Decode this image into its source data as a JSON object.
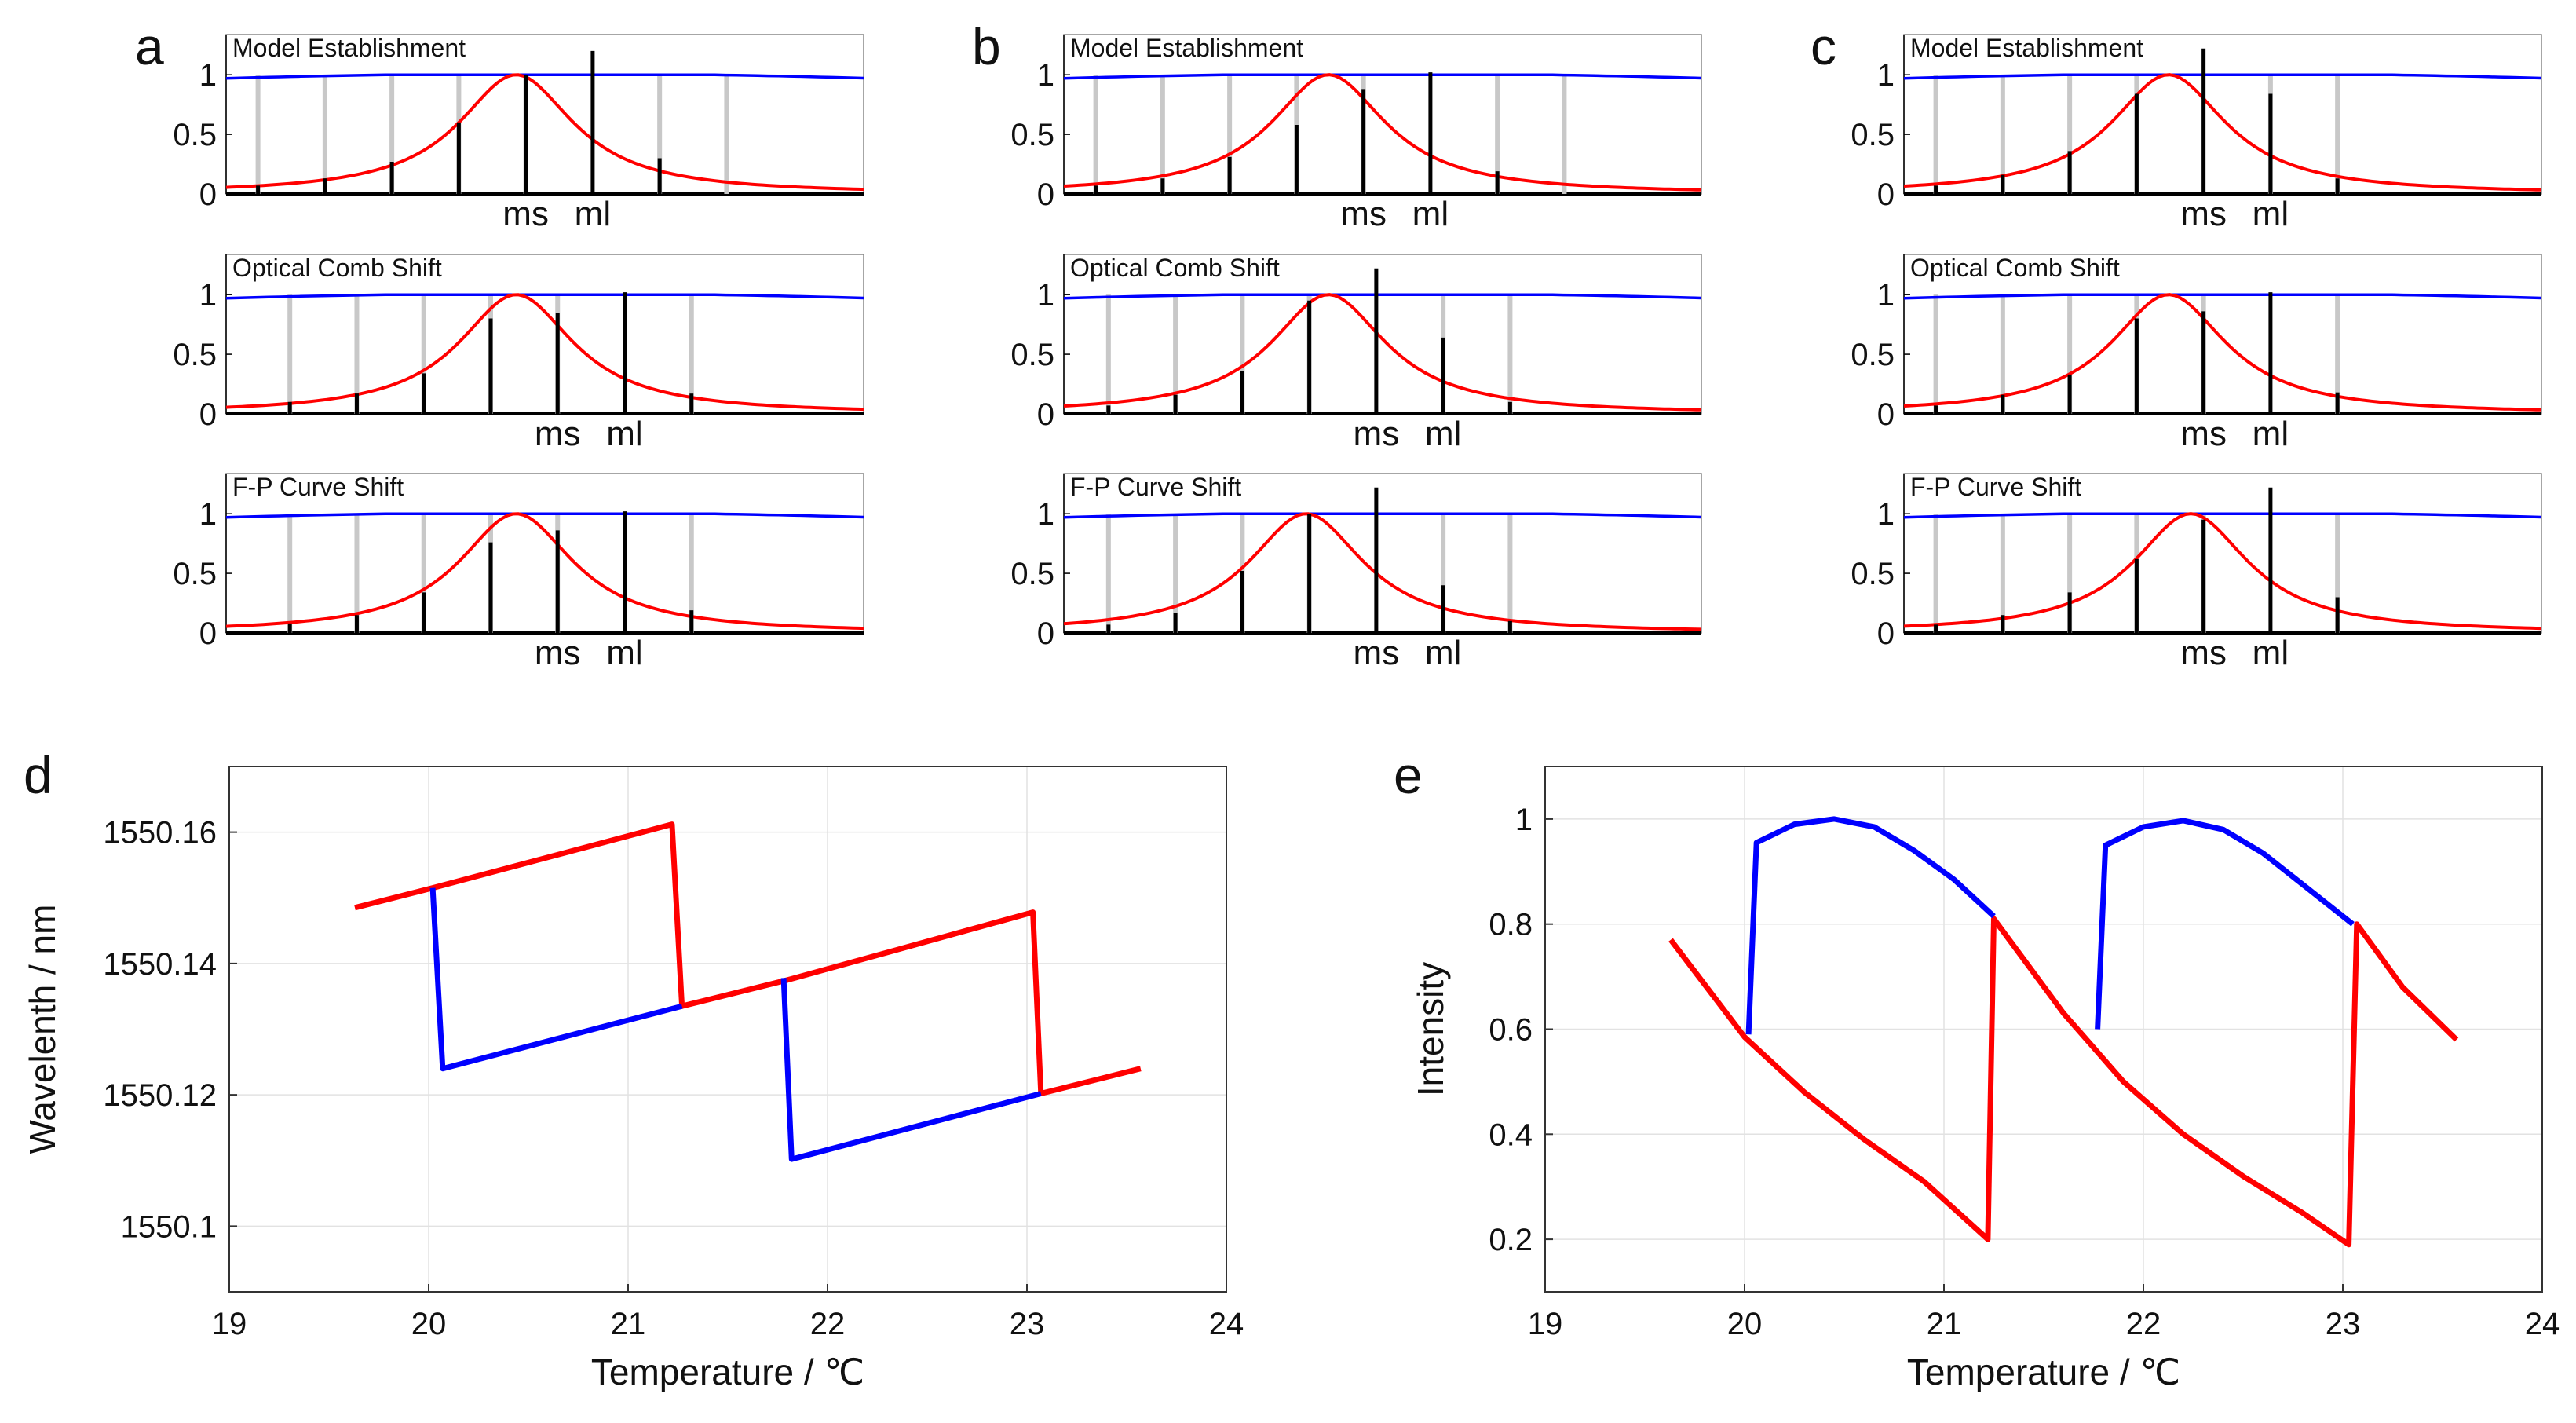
{
  "figure": {
    "colors": {
      "red": "#ff0000",
      "blue": "#0000ff",
      "black": "#000000",
      "gray": "#c8c8c8",
      "grid": "#e2e2e2"
    },
    "chart_data": [
      {
        "id": "a",
        "type": "line",
        "panel_letter": "a",
        "rows": [
          {
            "title": "Model Establishment",
            "ytick_labels": [
              "0",
              "0.5",
              "1"
            ],
            "mark_labels": [
              "ms",
              "ml"
            ],
            "comb_teeth": [
              {
                "x": 0.05,
                "black": 0.07,
                "gray": 1.0
              },
              {
                "x": 0.155,
                "black": 0.13,
                "gray": 1.0
              },
              {
                "x": 0.26,
                "black": 0.27,
                "gray": 1.0
              },
              {
                "x": 0.365,
                "black": 0.6,
                "gray": 1.0
              },
              {
                "x": 0.47,
                "black": 1.0,
                "gray": 1.0
              },
              {
                "x": 0.575,
                "black": 1.2,
                "gray": 0
              },
              {
                "x": 0.68,
                "black": 0.3,
                "gray": 1.0
              },
              {
                "x": 0.785,
                "black": 0,
                "gray": 1.0
              }
            ],
            "peak_x": 0.455,
            "ms_x": 0.47,
            "ml_x": 0.575
          },
          {
            "title": "Optical Comb Shift",
            "ytick_labels": [
              "0",
              "0.5",
              "1"
            ],
            "mark_labels": [
              "ms",
              "ml"
            ],
            "comb_teeth": [
              {
                "x": 0.1,
                "black": 0.1,
                "gray": 1.0
              },
              {
                "x": 0.205,
                "black": 0.17,
                "gray": 1.0
              },
              {
                "x": 0.31,
                "black": 0.34,
                "gray": 1.0
              },
              {
                "x": 0.415,
                "black": 0.8,
                "gray": 1.0
              },
              {
                "x": 0.52,
                "black": 0.85,
                "gray": 1.0
              },
              {
                "x": 0.625,
                "black": 1.02,
                "gray": 0
              },
              {
                "x": 0.73,
                "black": 0.17,
                "gray": 1.0
              }
            ],
            "peak_x": 0.455,
            "ms_x": 0.52,
            "ml_x": 0.625
          },
          {
            "title": "F-P Curve Shift",
            "ytick_labels": [
              "0",
              "0.5",
              "1"
            ],
            "mark_labels": [
              "ms",
              "ml"
            ],
            "comb_teeth": [
              {
                "x": 0.1,
                "black": 0.08,
                "gray": 1.0
              },
              {
                "x": 0.205,
                "black": 0.15,
                "gray": 1.0
              },
              {
                "x": 0.31,
                "black": 0.34,
                "gray": 1.0
              },
              {
                "x": 0.415,
                "black": 0.76,
                "gray": 1.0
              },
              {
                "x": 0.52,
                "black": 0.86,
                "gray": 1.0
              },
              {
                "x": 0.625,
                "black": 1.02,
                "gray": 0
              },
              {
                "x": 0.73,
                "black": 0.19,
                "gray": 1.0
              }
            ],
            "peak_x": 0.455,
            "ms_x": 0.52,
            "ml_x": 0.625
          }
        ]
      },
      {
        "id": "b",
        "type": "line",
        "panel_letter": "b",
        "rows": [
          {
            "title": "Model Establishment",
            "ytick_labels": [
              "0",
              "0.5",
              "1"
            ],
            "mark_labels": [
              "ms",
              "ml"
            ],
            "comb_teeth": [
              {
                "x": 0.05,
                "black": 0.07,
                "gray": 1.0
              },
              {
                "x": 0.155,
                "black": 0.13,
                "gray": 1.0
              },
              {
                "x": 0.26,
                "black": 0.31,
                "gray": 1.0
              },
              {
                "x": 0.365,
                "black": 0.58,
                "gray": 1.0
              },
              {
                "x": 0.47,
                "black": 0.88,
                "gray": 1.0
              },
              {
                "x": 0.575,
                "black": 1.02,
                "gray": 0
              },
              {
                "x": 0.68,
                "black": 0.19,
                "gray": 1.0
              },
              {
                "x": 0.785,
                "black": 0,
                "gray": 1.0
              }
            ],
            "peak_x": 0.415,
            "ms_x": 0.47,
            "ml_x": 0.575
          },
          {
            "title": "Optical Comb Shift",
            "ytick_labels": [
              "0",
              "0.5",
              "1"
            ],
            "mark_labels": [
              "ms",
              "ml"
            ],
            "comb_teeth": [
              {
                "x": 0.07,
                "black": 0.07,
                "gray": 1.0
              },
              {
                "x": 0.175,
                "black": 0.16,
                "gray": 1.0
              },
              {
                "x": 0.28,
                "black": 0.36,
                "gray": 1.0
              },
              {
                "x": 0.385,
                "black": 0.95,
                "gray": 1.0
              },
              {
                "x": 0.49,
                "black": 1.22,
                "gray": 0
              },
              {
                "x": 0.595,
                "black": 0.64,
                "gray": 1.0
              },
              {
                "x": 0.7,
                "black": 0.1,
                "gray": 1.0
              }
            ],
            "peak_x": 0.415,
            "ms_x": 0.49,
            "ml_x": 0.595
          },
          {
            "title": "F-P Curve Shift",
            "ytick_labels": [
              "0",
              "0.5",
              "1"
            ],
            "mark_labels": [
              "ms",
              "ml"
            ],
            "comb_teeth": [
              {
                "x": 0.07,
                "black": 0.07,
                "gray": 1.0
              },
              {
                "x": 0.175,
                "black": 0.17,
                "gray": 1.0
              },
              {
                "x": 0.28,
                "black": 0.52,
                "gray": 1.0
              },
              {
                "x": 0.385,
                "black": 1.0,
                "gray": 1.0
              },
              {
                "x": 0.49,
                "black": 1.22,
                "gray": 0
              },
              {
                "x": 0.595,
                "black": 0.4,
                "gray": 1.0
              },
              {
                "x": 0.7,
                "black": 0.1,
                "gray": 1.0
              }
            ],
            "peak_x": 0.38,
            "ms_x": 0.49,
            "ml_x": 0.595
          }
        ]
      },
      {
        "id": "c",
        "type": "line",
        "panel_letter": "c",
        "rows": [
          {
            "title": "Model Establishment",
            "ytick_labels": [
              "0",
              "0.5",
              "1"
            ],
            "mark_labels": [
              "ms",
              "ml"
            ],
            "comb_teeth": [
              {
                "x": 0.05,
                "black": 0.07,
                "gray": 1.0
              },
              {
                "x": 0.155,
                "black": 0.16,
                "gray": 1.0
              },
              {
                "x": 0.26,
                "black": 0.36,
                "gray": 1.0
              },
              {
                "x": 0.365,
                "black": 0.84,
                "gray": 1.0
              },
              {
                "x": 0.47,
                "black": 1.22,
                "gray": 0
              },
              {
                "x": 0.575,
                "black": 0.84,
                "gray": 1.0
              },
              {
                "x": 0.68,
                "black": 0.13,
                "gray": 1.0
              }
            ],
            "peak_x": 0.415,
            "ms_x": 0.47,
            "ml_x": 0.575
          },
          {
            "title": "Optical Comb Shift",
            "ytick_labels": [
              "0",
              "0.5",
              "1"
            ],
            "mark_labels": [
              "ms",
              "ml"
            ],
            "comb_teeth": [
              {
                "x": 0.05,
                "black": 0.07,
                "gray": 1.0
              },
              {
                "x": 0.155,
                "black": 0.16,
                "gray": 1.0
              },
              {
                "x": 0.26,
                "black": 0.33,
                "gray": 1.0
              },
              {
                "x": 0.365,
                "black": 0.8,
                "gray": 1.0
              },
              {
                "x": 0.47,
                "black": 0.86,
                "gray": 1.0
              },
              {
                "x": 0.575,
                "black": 1.02,
                "gray": 0
              },
              {
                "x": 0.68,
                "black": 0.18,
                "gray": 1.0
              }
            ],
            "peak_x": 0.415,
            "ms_x": 0.47,
            "ml_x": 0.575
          },
          {
            "title": "F-P Curve Shift",
            "ytick_labels": [
              "0",
              "0.5",
              "1"
            ],
            "mark_labels": [
              "ms",
              "ml"
            ],
            "comb_teeth": [
              {
                "x": 0.05,
                "black": 0.07,
                "gray": 1.0
              },
              {
                "x": 0.155,
                "black": 0.15,
                "gray": 1.0
              },
              {
                "x": 0.26,
                "black": 0.34,
                "gray": 1.0
              },
              {
                "x": 0.365,
                "black": 0.62,
                "gray": 1.0
              },
              {
                "x": 0.47,
                "black": 0.95,
                "gray": 1.0
              },
              {
                "x": 0.575,
                "black": 1.22,
                "gray": 0
              },
              {
                "x": 0.68,
                "black": 0.3,
                "gray": 1.0
              }
            ],
            "peak_x": 0.45,
            "ms_x": 0.47,
            "ml_x": 0.575
          }
        ]
      },
      {
        "id": "d",
        "type": "line",
        "panel_letter": "d",
        "xlabel": "Temperature / ℃",
        "ylabel": "Wavelenth / nm",
        "xlim": [
          19,
          24
        ],
        "ylim": [
          1550.09,
          1550.17
        ],
        "xticks": [
          19,
          20,
          21,
          22,
          23,
          24
        ],
        "xtick_labels": [
          "19",
          "20",
          "21",
          "22",
          "23",
          "24"
        ],
        "yticks": [
          1550.1,
          1550.12,
          1550.14,
          1550.16
        ],
        "ytick_labels": [
          "1550.1",
          "1550.12",
          "1550.14",
          "1550.16"
        ],
        "grid": true,
        "series": [
          {
            "color": "red",
            "x": [
              19.63,
              20.02,
              21.22,
              21.27,
              21.27,
              21.8,
              23.03,
              23.07,
              23.57
            ],
            "y": [
              1550.1485,
              1550.1515,
              1550.1612,
              1550.1335,
              1550.1335,
              1550.1375,
              1550.1478,
              1550.1202,
              1550.124
            ]
          },
          {
            "color": "blue",
            "x": [
              20.02,
              20.07,
              21.27
            ],
            "y": [
              1550.1515,
              1550.124,
              1550.1335
            ]
          },
          {
            "color": "blue",
            "x": [
              21.78,
              21.82,
              23.07
            ],
            "y": [
              1550.1378,
              1550.1102,
              1550.1202
            ]
          }
        ]
      },
      {
        "id": "e",
        "type": "line",
        "panel_letter": "e",
        "xlabel": "Temperature / ℃",
        "ylabel": "Intensity",
        "xlim": [
          19,
          24
        ],
        "ylim": [
          0.1,
          1.1
        ],
        "xticks": [
          19,
          20,
          21,
          22,
          23,
          24
        ],
        "xtick_labels": [
          "19",
          "20",
          "21",
          "22",
          "23",
          "24"
        ],
        "yticks": [
          0.2,
          0.4,
          0.6,
          0.8,
          1.0
        ],
        "ytick_labels": [
          "0.2",
          "0.4",
          "0.6",
          "0.8",
          "1"
        ],
        "grid": true,
        "series": [
          {
            "color": "red",
            "x": [
              19.63,
              20.0,
              20.3,
              20.6,
              20.9,
              21.22,
              21.25,
              21.6,
              21.9,
              22.2,
              22.5,
              22.8,
              23.03,
              23.07,
              23.3,
              23.57
            ],
            "y": [
              0.77,
              0.585,
              0.48,
              0.39,
              0.31,
              0.2,
              0.81,
              0.63,
              0.5,
              0.4,
              0.32,
              0.25,
              0.19,
              0.8,
              0.68,
              0.58
            ]
          },
          {
            "color": "blue",
            "x": [
              20.02,
              20.06,
              20.25,
              20.45,
              20.65,
              20.85,
              21.05,
              21.25
            ],
            "y": [
              0.59,
              0.955,
              0.99,
              1.0,
              0.985,
              0.94,
              0.885,
              0.815
            ]
          },
          {
            "color": "blue",
            "x": [
              21.77,
              21.81,
              22.0,
              22.2,
              22.4,
              22.6,
              22.8,
              23.05
            ],
            "y": [
              0.6,
              0.95,
              0.985,
              0.997,
              0.98,
              0.935,
              0.875,
              0.8
            ]
          }
        ]
      }
    ]
  }
}
